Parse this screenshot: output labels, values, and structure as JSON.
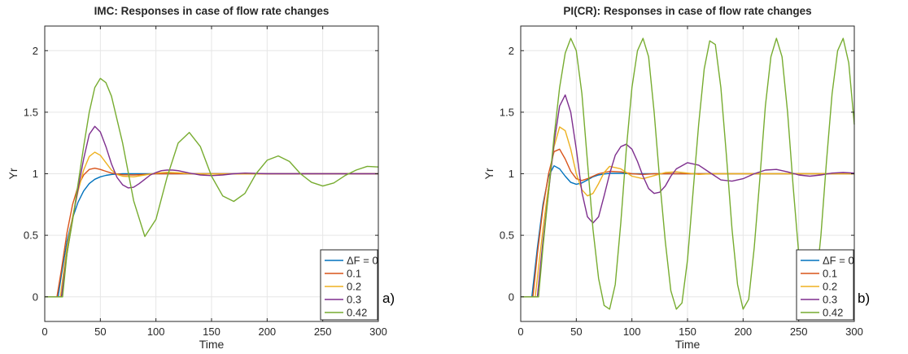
{
  "chart_data": [
    {
      "type": "line",
      "title": "IMC: Responses in case of flow rate changes",
      "xlabel": "Time",
      "ylabel": "Yr",
      "xlim": [
        0,
        300
      ],
      "ylim": [
        -0.2,
        2.2
      ],
      "xticks": [
        "0",
        "50",
        "100",
        "150",
        "200",
        "250",
        "300"
      ],
      "yticks": [
        "0",
        "0.5",
        "1",
        "1.5",
        "2"
      ],
      "grid": true,
      "legend_position": "bottom-right",
      "panel_label": "a)",
      "series": [
        {
          "name": "ΔF = 0",
          "color": "#0072BD",
          "x": [
            0,
            12,
            15,
            20,
            25,
            30,
            35,
            40,
            45,
            50,
            55,
            60,
            65,
            70,
            80,
            300
          ],
          "y": [
            0,
            0,
            0.18,
            0.45,
            0.64,
            0.77,
            0.86,
            0.92,
            0.955,
            0.975,
            0.987,
            0.994,
            0.998,
            1.0,
            1.0,
            1.0
          ]
        },
        {
          "name": "0.1",
          "color": "#D95319",
          "x": [
            0,
            11,
            15,
            20,
            25,
            30,
            35,
            40,
            45,
            50,
            55,
            60,
            70,
            80,
            90,
            100,
            120,
            150,
            300
          ],
          "y": [
            0,
            0,
            0.22,
            0.52,
            0.75,
            0.9,
            0.99,
            1.035,
            1.045,
            1.035,
            1.02,
            1.005,
            0.992,
            0.99,
            0.995,
            1.0,
            1.0,
            1.0,
            1.0
          ]
        },
        {
          "name": "0.2",
          "color": "#EDB120",
          "x": [
            0,
            14,
            20,
            25,
            30,
            35,
            40,
            45,
            50,
            55,
            60,
            65,
            70,
            80,
            90,
            100,
            110,
            120,
            130,
            150,
            300
          ],
          "y": [
            0,
            0,
            0.4,
            0.65,
            0.86,
            1.03,
            1.14,
            1.175,
            1.15,
            1.09,
            1.03,
            0.995,
            0.98,
            0.975,
            0.99,
            1.005,
            1.012,
            1.008,
            1.0,
            0.998,
            1.0
          ]
        },
        {
          "name": "0.3",
          "color": "#7E2F8E",
          "x": [
            0,
            15,
            20,
            25,
            30,
            35,
            40,
            45,
            50,
            55,
            60,
            65,
            70,
            75,
            80,
            85,
            90,
            95,
            100,
            105,
            110,
            115,
            120,
            125,
            130,
            140,
            150,
            160,
            170,
            180,
            200,
            300
          ],
          "y": [
            0,
            0,
            0.35,
            0.63,
            0.88,
            1.12,
            1.32,
            1.385,
            1.34,
            1.22,
            1.08,
            0.97,
            0.91,
            0.885,
            0.89,
            0.92,
            0.955,
            0.99,
            1.01,
            1.025,
            1.03,
            1.03,
            1.025,
            1.015,
            1.005,
            0.99,
            0.985,
            0.99,
            1.0,
            1.005,
            1.0,
            1.0
          ]
        },
        {
          "name": "0.42",
          "color": "#77AC30",
          "x": [
            0,
            16,
            20,
            25,
            30,
            35,
            40,
            45,
            50,
            55,
            60,
            70,
            80,
            90,
            100,
            110,
            120,
            130,
            140,
            150,
            160,
            170,
            180,
            190,
            200,
            210,
            220,
            230,
            240,
            250,
            260,
            270,
            280,
            290,
            300
          ],
          "y": [
            0,
            0,
            0.35,
            0.62,
            0.92,
            1.22,
            1.5,
            1.7,
            1.775,
            1.74,
            1.63,
            1.25,
            0.78,
            0.49,
            0.63,
            0.97,
            1.25,
            1.335,
            1.22,
            0.98,
            0.82,
            0.775,
            0.84,
            1.0,
            1.11,
            1.145,
            1.1,
            1.0,
            0.93,
            0.9,
            0.925,
            0.985,
            1.03,
            1.06,
            1.055
          ]
        }
      ]
    },
    {
      "type": "line",
      "title": "PI(CR): Responses in case of flow rate changes",
      "xlabel": "Time",
      "ylabel": "Yr",
      "xlim": [
        0,
        300
      ],
      "ylim": [
        -0.2,
        2.2
      ],
      "xticks": [
        "0",
        "50",
        "100",
        "150",
        "200",
        "250",
        "300"
      ],
      "yticks": [
        "0",
        "0.5",
        "1",
        "1.5",
        "2"
      ],
      "grid": true,
      "legend_position": "bottom-right",
      "panel_label": "b)",
      "series": [
        {
          "name": "ΔF = 0",
          "color": "#0072BD",
          "x": [
            0,
            10,
            15,
            20,
            25,
            30,
            35,
            40,
            45,
            50,
            55,
            60,
            65,
            70,
            75,
            80,
            90,
            100,
            110,
            120,
            300
          ],
          "y": [
            0,
            0,
            0.4,
            0.75,
            0.98,
            1.065,
            1.04,
            0.98,
            0.93,
            0.915,
            0.925,
            0.95,
            0.975,
            0.99,
            0.998,
            1.003,
            1.003,
            1.0,
            1.0,
            1.0,
            1.0
          ]
        },
        {
          "name": "0.1",
          "color": "#D95319",
          "x": [
            0,
            11,
            15,
            20,
            25,
            30,
            35,
            40,
            45,
            50,
            55,
            60,
            70,
            80,
            90,
            100,
            110,
            120,
            300
          ],
          "y": [
            0,
            0,
            0.35,
            0.72,
            1.0,
            1.18,
            1.2,
            1.12,
            1.02,
            0.96,
            0.945,
            0.96,
            1.0,
            1.02,
            1.015,
            1.0,
            0.995,
            1.0,
            1.0
          ]
        },
        {
          "name": "0.2",
          "color": "#EDB120",
          "x": [
            0,
            13,
            20,
            25,
            30,
            35,
            40,
            45,
            50,
            55,
            60,
            65,
            70,
            75,
            80,
            90,
            100,
            110,
            120,
            130,
            140,
            150,
            160,
            170,
            180,
            300
          ],
          "y": [
            0,
            0,
            0.55,
            0.9,
            1.22,
            1.38,
            1.35,
            1.2,
            1.0,
            0.87,
            0.82,
            0.84,
            0.92,
            1.01,
            1.06,
            1.04,
            0.98,
            0.96,
            0.985,
            1.01,
            1.015,
            1.005,
            0.995,
            1.0,
            1.0,
            1.0
          ]
        },
        {
          "name": "0.3",
          "color": "#7E2F8E",
          "x": [
            0,
            15,
            20,
            25,
            30,
            35,
            40,
            45,
            50,
            55,
            60,
            65,
            70,
            75,
            80,
            85,
            90,
            95,
            100,
            105,
            110,
            115,
            120,
            125,
            130,
            135,
            140,
            150,
            160,
            170,
            180,
            190,
            200,
            210,
            220,
            230,
            240,
            250,
            260,
            270,
            280,
            290,
            300
          ],
          "y": [
            0,
            0,
            0.45,
            0.85,
            1.25,
            1.55,
            1.64,
            1.5,
            1.2,
            0.85,
            0.65,
            0.6,
            0.65,
            0.82,
            1.0,
            1.15,
            1.22,
            1.24,
            1.2,
            1.1,
            0.98,
            0.88,
            0.84,
            0.85,
            0.9,
            0.98,
            1.04,
            1.09,
            1.07,
            1.01,
            0.95,
            0.94,
            0.96,
            1.0,
            1.03,
            1.035,
            1.015,
            0.99,
            0.98,
            0.99,
            1.005,
            1.01,
            1.005
          ]
        },
        {
          "name": "0.42",
          "color": "#77AC30",
          "x": [
            0,
            16,
            20,
            25,
            30,
            35,
            40,
            45,
            50,
            55,
            60,
            65,
            70,
            75,
            80,
            85,
            90,
            95,
            100,
            105,
            110,
            115,
            120,
            125,
            130,
            135,
            140,
            145,
            150,
            155,
            160,
            165,
            170,
            175,
            180,
            185,
            190,
            195,
            200,
            205,
            210,
            215,
            220,
            225,
            230,
            235,
            240,
            245,
            250,
            255,
            260,
            265,
            270,
            275,
            280,
            285,
            290,
            295,
            300
          ],
          "y": [
            0,
            0,
            0.4,
            0.85,
            1.3,
            1.7,
            1.98,
            2.1,
            2.0,
            1.65,
            1.1,
            0.55,
            0.15,
            -0.07,
            -0.1,
            0.1,
            0.6,
            1.2,
            1.7,
            2.0,
            2.1,
            1.95,
            1.5,
            0.95,
            0.45,
            0.05,
            -0.1,
            -0.05,
            0.3,
            0.85,
            1.4,
            1.85,
            2.08,
            2.05,
            1.7,
            1.15,
            0.55,
            0.1,
            -0.1,
            -0.02,
            0.4,
            0.95,
            1.55,
            1.95,
            2.1,
            1.95,
            1.5,
            0.9,
            0.35,
            0.0,
            -0.1,
            0.05,
            0.5,
            1.1,
            1.65,
            2.0,
            2.1,
            1.9,
            1.4
          ]
        }
      ]
    }
  ]
}
